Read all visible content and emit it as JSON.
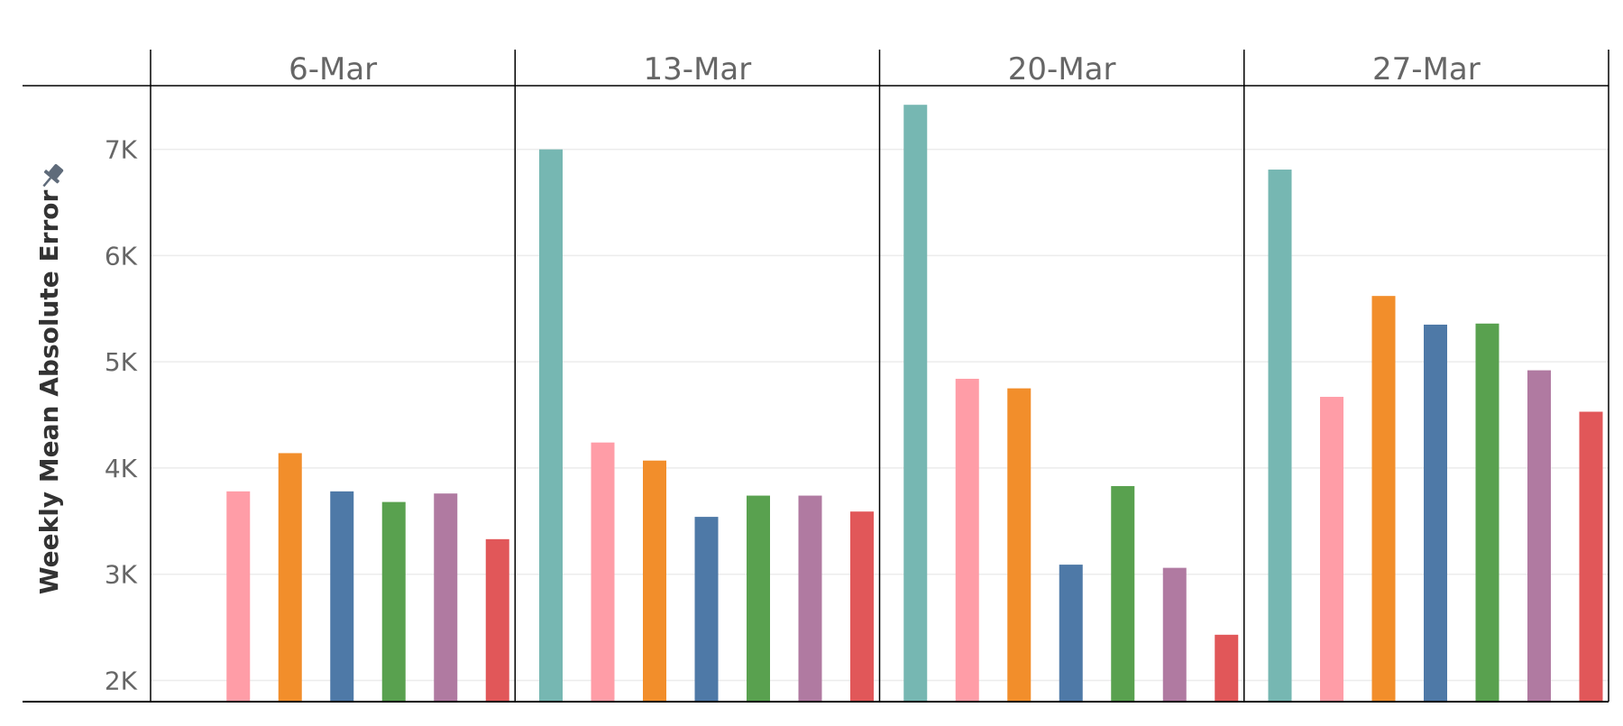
{
  "chart_data": {
    "type": "bar",
    "ylabel": "Weekly Mean Absolute Error",
    "ylim": [
      1800,
      7600
    ],
    "y_ticks": [
      {
        "value": 2000,
        "label": "2K"
      },
      {
        "value": 3000,
        "label": "3K"
      },
      {
        "value": 4000,
        "label": "4K"
      },
      {
        "value": 5000,
        "label": "5K"
      },
      {
        "value": 6000,
        "label": "6K"
      },
      {
        "value": 7000,
        "label": "7K"
      }
    ],
    "panels": [
      "6-Mar",
      "13-Mar",
      "20-Mar",
      "27-Mar"
    ],
    "grid": true,
    "pin_icon": "pin-icon",
    "series": [
      {
        "color": "#76b7b2",
        "values": [
          null,
          7000,
          7420,
          6810
        ]
      },
      {
        "color": "#ff9da7",
        "values": [
          3780,
          4240,
          4840,
          4670
        ]
      },
      {
        "color": "#f28e2b",
        "values": [
          4140,
          4070,
          4750,
          5620
        ]
      },
      {
        "color": "#4e79a7",
        "values": [
          3780,
          3540,
          3090,
          5350
        ]
      },
      {
        "color": "#59a14f",
        "values": [
          3680,
          3740,
          3830,
          5360
        ]
      },
      {
        "color": "#b07aa1",
        "values": [
          3760,
          3740,
          3060,
          4920
        ]
      },
      {
        "color": "#e15759",
        "values": [
          3330,
          3590,
          2430,
          4530
        ]
      }
    ]
  }
}
